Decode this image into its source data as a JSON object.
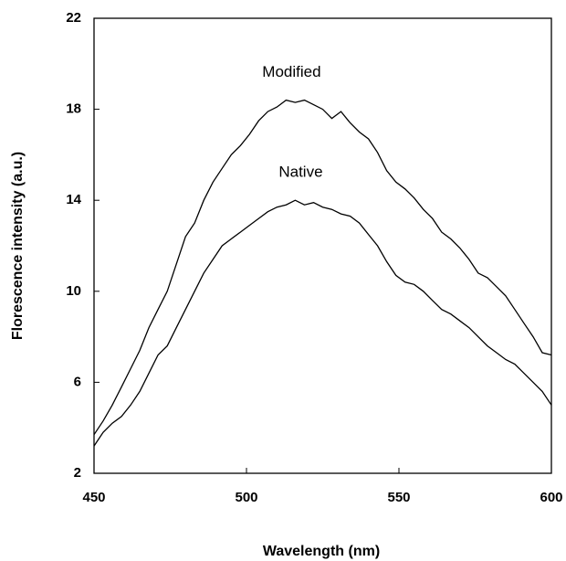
{
  "chart_data": {
    "type": "line",
    "x_label": "Wavelength (nm)",
    "y_label": "Florescence intensity (a.u.)",
    "x": [
      450,
      453,
      456,
      459,
      462,
      465,
      468,
      471,
      474,
      477,
      480,
      483,
      486,
      489,
      492,
      495,
      498,
      501,
      504,
      507,
      510,
      513,
      516,
      519,
      522,
      525,
      528,
      531,
      534,
      537,
      540,
      543,
      546,
      549,
      552,
      555,
      558,
      561,
      564,
      567,
      570,
      573,
      576,
      579,
      582,
      585,
      588,
      591,
      594,
      597,
      600
    ],
    "series": [
      {
        "name": "Modified",
        "color": "#000000",
        "values": [
          3.7,
          4.3,
          5.0,
          5.8,
          6.6,
          7.4,
          8.4,
          9.2,
          10.0,
          11.2,
          12.4,
          13.0,
          14.0,
          14.8,
          15.4,
          16.0,
          16.4,
          16.9,
          17.5,
          17.9,
          18.1,
          18.4,
          18.3,
          18.4,
          18.2,
          18.0,
          17.6,
          17.9,
          17.4,
          17.0,
          16.7,
          16.1,
          15.3,
          14.8,
          14.5,
          14.1,
          13.6,
          13.2,
          12.6,
          12.3,
          11.9,
          11.4,
          10.8,
          10.6,
          10.2,
          9.8,
          9.2,
          8.6,
          8.0,
          7.3,
          7.2
        ]
      },
      {
        "name": "Native",
        "color": "#000000",
        "values": [
          3.2,
          3.8,
          4.2,
          4.5,
          5.0,
          5.6,
          6.4,
          7.2,
          7.6,
          8.4,
          9.2,
          10.0,
          10.8,
          11.4,
          12.0,
          12.3,
          12.6,
          12.9,
          13.2,
          13.5,
          13.7,
          13.8,
          14.0,
          13.8,
          13.9,
          13.7,
          13.6,
          13.4,
          13.3,
          13.0,
          12.5,
          12.0,
          11.3,
          10.7,
          10.4,
          10.3,
          10.0,
          9.6,
          9.2,
          9.0,
          8.7,
          8.4,
          8.0,
          7.6,
          7.3,
          7.0,
          6.8,
          6.4,
          6.0,
          5.6,
          5.0
        ]
      }
    ],
    "xlim": [
      450,
      600
    ],
    "xticks": [
      450,
      500,
      550,
      600
    ],
    "ylim": [
      2,
      22
    ],
    "yticks": [
      2,
      6,
      10,
      14,
      18,
      22
    ]
  }
}
